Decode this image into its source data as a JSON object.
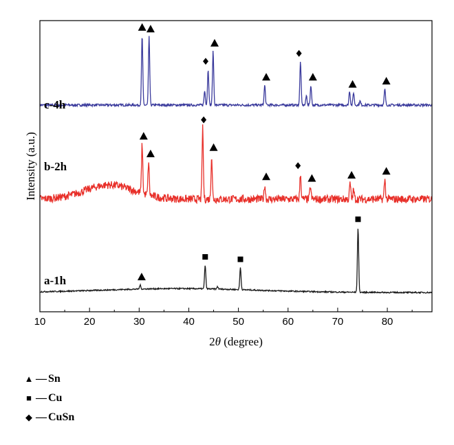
{
  "chart_data": {
    "type": "line",
    "xlabel_prefix": "2",
    "xlabel_symbol": "θ",
    "xlabel_suffix": " (degree)",
    "ylabel": "Intensity (a.u.)",
    "xlim": [
      10,
      89
    ],
    "x_ticks": [
      10,
      20,
      30,
      40,
      50,
      60,
      70,
      80
    ],
    "y_ticks_shown": false,
    "series": [
      {
        "name": "c-4h",
        "color": "#3a3a9c",
        "offset": 2.1,
        "baseline_noise": 0.015,
        "hump": null,
        "peaks": [
          [
            30.6,
            0.88
          ],
          [
            32.0,
            0.86
          ],
          [
            43.2,
            0.18
          ],
          [
            43.9,
            0.45
          ],
          [
            44.9,
            0.68
          ],
          [
            55.3,
            0.25
          ],
          [
            62.5,
            0.55
          ],
          [
            63.7,
            0.12
          ],
          [
            64.6,
            0.25
          ],
          [
            72.4,
            0.18
          ],
          [
            73.2,
            0.16
          ],
          [
            74.5,
            0.05
          ],
          [
            79.5,
            0.2
          ]
        ]
      },
      {
        "name": "b-2h",
        "color": "#e8302a",
        "offset": 1.12,
        "baseline_noise": 0.05,
        "hump": {
          "center": 24,
          "width": 7,
          "height": 0.18
        },
        "peaks": [
          [
            30.6,
            0.62
          ],
          [
            31.9,
            0.42
          ],
          [
            42.8,
            0.9
          ],
          [
            44.6,
            0.55
          ],
          [
            55.3,
            0.18
          ],
          [
            62.5,
            0.32
          ],
          [
            64.5,
            0.16
          ],
          [
            72.5,
            0.2
          ],
          [
            73.2,
            0.12
          ],
          [
            79.5,
            0.25
          ]
        ]
      },
      {
        "name": "a-1h",
        "color": "#1a1a1a",
        "offset": 0.0,
        "baseline_noise": 0.008,
        "hump": {
          "center": 38,
          "width": 22,
          "height": 0.05
        },
        "peaks": [
          [
            30.2,
            0.05
          ],
          [
            43.3,
            0.3
          ],
          [
            45.8,
            0.03
          ],
          [
            50.4,
            0.28
          ],
          [
            74.1,
            0.82
          ]
        ]
      }
    ],
    "markers": [
      {
        "type": "Sn",
        "x": 30.6,
        "series": "c-4h"
      },
      {
        "type": "Sn",
        "x": 32.3,
        "series": "c-4h"
      },
      {
        "type": "CuSn",
        "x": 43.4,
        "series": "c-4h"
      },
      {
        "type": "Sn",
        "x": 45.2,
        "series": "c-4h"
      },
      {
        "type": "Sn",
        "x": 55.6,
        "series": "c-4h"
      },
      {
        "type": "CuSn",
        "x": 62.2,
        "series": "c-4h"
      },
      {
        "type": "Sn",
        "x": 65.0,
        "series": "c-4h"
      },
      {
        "type": "Sn",
        "x": 73.0,
        "series": "c-4h"
      },
      {
        "type": "Sn",
        "x": 79.8,
        "series": "c-4h"
      },
      {
        "type": "Sn",
        "x": 30.9,
        "series": "b-2h"
      },
      {
        "type": "Sn",
        "x": 32.3,
        "series": "b-2h"
      },
      {
        "type": "CuSn",
        "x": 43.0,
        "series": "b-2h"
      },
      {
        "type": "Sn",
        "x": 45.0,
        "series": "b-2h"
      },
      {
        "type": "Sn",
        "x": 55.6,
        "series": "b-2h"
      },
      {
        "type": "CuSn",
        "x": 62.0,
        "series": "b-2h"
      },
      {
        "type": "Sn",
        "x": 64.8,
        "series": "b-2h"
      },
      {
        "type": "Sn",
        "x": 72.8,
        "series": "b-2h"
      },
      {
        "type": "Sn",
        "x": 79.8,
        "series": "b-2h"
      },
      {
        "type": "Sn",
        "x": 30.5,
        "series": "a-1h"
      },
      {
        "type": "Cu",
        "x": 43.3,
        "series": "a-1h"
      },
      {
        "type": "Cu",
        "x": 50.4,
        "series": "a-1h"
      },
      {
        "type": "Cu",
        "x": 74.1,
        "series": "a-1h"
      }
    ]
  },
  "legend": [
    {
      "symbol": "▲",
      "marker": "triangle-icon",
      "dash": "—",
      "label": "Sn"
    },
    {
      "symbol": "■",
      "marker": "square-icon",
      "dash": "—",
      "label": "Cu"
    },
    {
      "symbol": "◆",
      "marker": "diamond-icon",
      "dash": "—",
      "label": "CuSn"
    }
  ]
}
